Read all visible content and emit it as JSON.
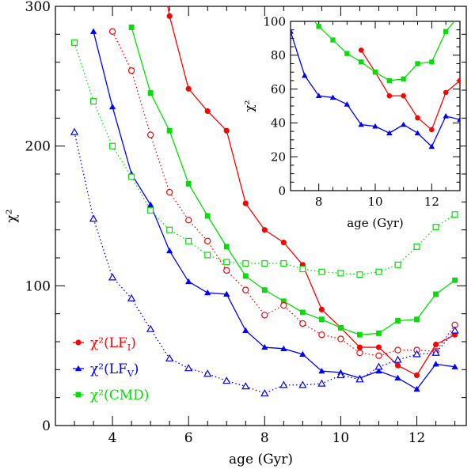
{
  "chart_data": [
    {
      "type": "line",
      "title": "",
      "xlabel": "age (Gyr)",
      "ylabel": "χ²",
      "xlim": [
        2.5,
        13.3
      ],
      "ylim": [
        0,
        300
      ],
      "xticks": [
        4,
        6,
        8,
        10,
        12
      ],
      "yticks": [
        0,
        100,
        200,
        300
      ],
      "series": [
        {
          "name": "χ²(LF_I)",
          "legend_label": "χ²(LF",
          "legend_sub": "I",
          "color": "#ff0000",
          "marker": "filled-circle",
          "line": "solid",
          "x": [
            5.0,
            5.5,
            6.0,
            6.5,
            7.0,
            7.5,
            8.0,
            8.5,
            9.0,
            9.5,
            10.0,
            10.5,
            11.0,
            11.5,
            12.0,
            12.5,
            13.0
          ],
          "y": [
            370,
            293,
            241,
            225,
            211,
            159,
            140,
            131,
            115,
            83,
            70,
            56,
            56,
            43,
            36,
            58,
            65
          ]
        },
        {
          "name": "χ²(LF_V)",
          "legend_label": "χ²(LF",
          "legend_sub": "V",
          "color": "#0000ff",
          "marker": "filled-triangle",
          "line": "solid",
          "x": [
            3.5,
            4.0,
            4.5,
            5.0,
            5.5,
            6.0,
            6.5,
            7.0,
            7.5,
            8.0,
            8.5,
            9.0,
            9.5,
            10.0,
            10.5,
            11.0,
            11.5,
            12.0,
            12.5,
            13.0
          ],
          "y": [
            282,
            228,
            180,
            158,
            125,
            103,
            95,
            94,
            68,
            56,
            55,
            51,
            39,
            38,
            34,
            39,
            34,
            26,
            44,
            42
          ]
        },
        {
          "name": "χ²(CMD)",
          "legend_label": "χ²(CMD)",
          "legend_sub": "",
          "color": "#00e000",
          "marker": "filled-square",
          "line": "solid",
          "x": [
            4.5,
            5.0,
            5.5,
            6.0,
            6.5,
            7.0,
            7.5,
            8.0,
            8.5,
            9.0,
            9.5,
            10.0,
            10.5,
            11.0,
            11.5,
            12.0,
            12.5,
            13.0
          ],
          "y": [
            285,
            238,
            211,
            173,
            150,
            128,
            107,
            97,
            89,
            81,
            76,
            70,
            65,
            66,
            75,
            76,
            94,
            104
          ]
        },
        {
          "name": "LF_I dotted",
          "color": "#ff0000",
          "marker": "open-circle",
          "line": "dotted",
          "x": [
            4.0,
            4.5,
            5.0,
            5.5,
            6.0,
            6.5,
            7.0,
            7.5,
            8.0,
            8.5,
            9.0,
            9.5,
            10.0,
            10.5,
            11.0,
            11.5,
            12.0,
            12.5,
            13.0
          ],
          "y": [
            282,
            254,
            208,
            167,
            147,
            132,
            111,
            97,
            79,
            86,
            73,
            65,
            62,
            52,
            50,
            54,
            54,
            53,
            72
          ]
        },
        {
          "name": "LF_V dotted",
          "color": "#0000ff",
          "marker": "open-triangle",
          "line": "dotted",
          "x": [
            3.0,
            3.5,
            4.0,
            4.5,
            5.0,
            5.5,
            6.0,
            6.5,
            7.0,
            7.5,
            8.0,
            8.5,
            9.0,
            9.5,
            10.0,
            10.5,
            11.0,
            11.5,
            12.0,
            12.5,
            13.0
          ],
          "y": [
            210,
            148,
            106,
            91,
            69,
            48,
            41,
            37,
            32,
            28,
            23,
            29,
            29,
            30,
            36,
            33,
            42,
            47,
            51,
            52,
            68
          ]
        },
        {
          "name": "CMD dotted",
          "color": "#00e000",
          "marker": "open-square",
          "line": "dotted",
          "x": [
            3.0,
            3.5,
            4.0,
            4.5,
            5.0,
            5.5,
            6.0,
            6.5,
            7.0,
            7.5,
            8.0,
            8.5,
            9.0,
            9.5,
            10.0,
            10.5,
            11.0,
            11.5,
            12.0,
            12.5,
            13.0
          ],
          "y": [
            274,
            232,
            200,
            178,
            154,
            140,
            132,
            122,
            117,
            116,
            116,
            116,
            112,
            110,
            109,
            108,
            110,
            115,
            128,
            142,
            151
          ]
        }
      ]
    },
    {
      "type": "line",
      "title": "",
      "xlabel": "age (Gyr)",
      "ylabel": "χ²",
      "xlim": [
        7,
        13
      ],
      "ylim": [
        0,
        100
      ],
      "xticks": [
        8,
        10,
        12
      ],
      "yticks": [
        0,
        20,
        40,
        60,
        80,
        100
      ],
      "series": [
        {
          "name": "χ²(LF_I)",
          "color": "#ff0000",
          "marker": "filled-circle",
          "line": "solid",
          "x": [
            9.5,
            10.0,
            10.5,
            11.0,
            11.5,
            12.0,
            12.5,
            13.0
          ],
          "y": [
            83,
            70,
            56,
            56,
            43,
            36,
            58,
            65
          ]
        },
        {
          "name": "χ²(LF_V)",
          "color": "#0000ff",
          "marker": "filled-triangle",
          "line": "solid",
          "x": [
            7.0,
            7.5,
            8.0,
            8.5,
            9.0,
            9.5,
            10.0,
            10.5,
            11.0,
            11.5,
            12.0,
            12.5,
            13.0
          ],
          "y": [
            94,
            68,
            56,
            55,
            51,
            39,
            38,
            34,
            39,
            34,
            26,
            44,
            42
          ]
        },
        {
          "name": "χ²(CMD)",
          "color": "#00e000",
          "marker": "filled-square",
          "line": "solid",
          "x": [
            7.0,
            7.5,
            8.0,
            8.5,
            9.0,
            9.5,
            10.0,
            10.5,
            11.0,
            11.5,
            12.0,
            12.5,
            13.0
          ],
          "y": [
            128,
            107,
            97,
            89,
            81,
            76,
            70,
            65,
            66,
            75,
            76,
            94,
            104
          ]
        }
      ]
    }
  ]
}
